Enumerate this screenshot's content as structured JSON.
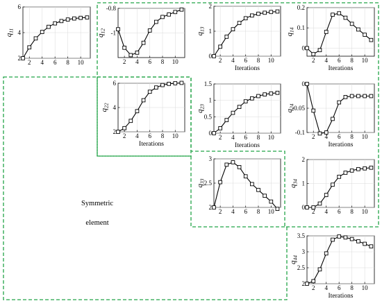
{
  "annotation": {
    "symmetric_line1": "Symmetric",
    "symmetric_line2": "element"
  },
  "colors": {
    "region_outline": "#22a447",
    "series": "#000000",
    "grid": "#d9d9d9"
  },
  "chart_data": [
    {
      "id": "q11",
      "type": "line",
      "ylabel_main": "q",
      "ylabel_sub": "11",
      "xlabel": "",
      "x": [
        1,
        2,
        3,
        4,
        5,
        6,
        7,
        8,
        9,
        10,
        11
      ],
      "values": [
        2.0,
        2.85,
        3.55,
        4.05,
        4.45,
        4.72,
        4.9,
        5.02,
        5.1,
        5.15,
        5.18
      ],
      "xlim": [
        1,
        11.5
      ],
      "ylim": [
        2,
        6
      ],
      "xticks": [
        2,
        4,
        6,
        8,
        10
      ],
      "yticks": [
        2,
        4,
        6
      ],
      "grid": true
    },
    {
      "id": "q12",
      "type": "line",
      "ylabel_main": "q",
      "ylabel_sub": "12",
      "xlabel": "",
      "x": [
        1,
        2,
        3,
        4,
        5,
        6,
        7,
        8,
        9,
        10,
        11
      ],
      "values": [
        -0.97,
        -1.12,
        -1.18,
        -1.16,
        -1.08,
        -0.98,
        -0.91,
        -0.87,
        -0.85,
        -0.83,
        -0.81
      ],
      "xlim": [
        1,
        11.5
      ],
      "ylim": [
        -1.2,
        -0.8
      ],
      "xticks": [
        2,
        4,
        6,
        8,
        10
      ],
      "yticks": [
        -1,
        -0.8
      ],
      "grid": true
    },
    {
      "id": "q13",
      "type": "line",
      "ylabel_main": "q",
      "ylabel_sub": "13",
      "xlabel": "Iterations",
      "x": [
        1,
        2,
        3,
        4,
        5,
        6,
        7,
        8,
        9,
        10,
        11
      ],
      "values": [
        0.0,
        0.38,
        0.78,
        1.08,
        1.33,
        1.52,
        1.63,
        1.7,
        1.74,
        1.77,
        1.79
      ],
      "xlim": [
        1,
        11.5
      ],
      "ylim": [
        0,
        2
      ],
      "xticks": [
        2,
        4,
        6,
        8,
        10
      ],
      "yticks": [
        0,
        1,
        2
      ],
      "grid": true
    },
    {
      "id": "q14",
      "type": "line",
      "ylabel_main": "q",
      "ylabel_sub": "14",
      "xlabel": "Iterations",
      "x": [
        1,
        2,
        3,
        4,
        5,
        6,
        7,
        8,
        9,
        10,
        11
      ],
      "values": [
        0.0,
        -0.03,
        -0.01,
        0.08,
        0.165,
        0.172,
        0.15,
        0.12,
        0.092,
        0.066,
        0.04
      ],
      "xlim": [
        1,
        11.5
      ],
      "ylim": [
        -0.04,
        0.2
      ],
      "xticks": [
        2,
        4,
        6,
        8,
        10
      ],
      "yticks": [
        0,
        0.1,
        0.2
      ],
      "grid": true
    },
    {
      "id": "q22",
      "type": "line",
      "ylabel_main": "q",
      "ylabel_sub": "22",
      "xlabel": "Iterations",
      "x": [
        1,
        2,
        3,
        4,
        5,
        6,
        7,
        8,
        9,
        10,
        11
      ],
      "values": [
        2.0,
        2.3,
        2.9,
        3.7,
        4.6,
        5.3,
        5.65,
        5.85,
        5.95,
        6.0,
        6.03
      ],
      "xlim": [
        1,
        11.5
      ],
      "ylim": [
        2,
        6
      ],
      "xticks": [
        2,
        4,
        6,
        8,
        10
      ],
      "yticks": [
        2,
        4,
        6
      ],
      "grid": true
    },
    {
      "id": "q23",
      "type": "line",
      "ylabel_main": "q",
      "ylabel_sub": "23",
      "xlabel": "Iterations",
      "x": [
        1,
        2,
        3,
        4,
        5,
        6,
        7,
        8,
        9,
        10,
        11
      ],
      "values": [
        0.0,
        0.15,
        0.4,
        0.62,
        0.8,
        0.97,
        1.06,
        1.13,
        1.18,
        1.21,
        1.23
      ],
      "xlim": [
        1,
        11.5
      ],
      "ylim": [
        0,
        1.5
      ],
      "xticks": [
        2,
        4,
        6,
        8,
        10
      ],
      "yticks": [
        0,
        0.5,
        1,
        1.5
      ],
      "grid": true
    },
    {
      "id": "q24",
      "type": "line",
      "ylabel_main": "q",
      "ylabel_sub": "24",
      "xlabel": "Iterations",
      "x": [
        1,
        2,
        3,
        4,
        5,
        6,
        7,
        8,
        9,
        10,
        11
      ],
      "values": [
        0.0,
        -0.055,
        -0.102,
        -0.1,
        -0.072,
        -0.038,
        -0.027,
        -0.025,
        -0.025,
        -0.025,
        -0.025
      ],
      "xlim": [
        1,
        11.5
      ],
      "ylim": [
        -0.1,
        0
      ],
      "xticks": [
        2,
        4,
        6,
        8,
        10
      ],
      "yticks": [
        -0.1,
        -0.05,
        0
      ],
      "grid": true
    },
    {
      "id": "q33",
      "type": "line",
      "ylabel_main": "q",
      "ylabel_sub": "33",
      "xlabel": "",
      "x": [
        1,
        2,
        3,
        4,
        5,
        6,
        7,
        8,
        9,
        10,
        11
      ],
      "values": [
        2.0,
        2.52,
        2.88,
        2.93,
        2.83,
        2.64,
        2.48,
        2.36,
        2.24,
        2.12,
        1.97
      ],
      "xlim": [
        1,
        11.5
      ],
      "ylim": [
        2,
        3
      ],
      "xticks": [
        2,
        4,
        6,
        8,
        10
      ],
      "yticks": [
        2,
        2.5,
        3
      ],
      "grid": true
    },
    {
      "id": "q34",
      "type": "line",
      "ylabel_main": "q",
      "ylabel_sub": "34",
      "xlabel": "",
      "x": [
        1,
        2,
        3,
        4,
        5,
        6,
        7,
        8,
        9,
        10,
        11
      ],
      "values": [
        0.0,
        0.0,
        0.16,
        0.52,
        0.95,
        1.28,
        1.45,
        1.54,
        1.6,
        1.63,
        1.66
      ],
      "xlim": [
        1,
        11.5
      ],
      "ylim": [
        0,
        2
      ],
      "xticks": [
        2,
        4,
        6,
        8,
        10
      ],
      "yticks": [
        0,
        1,
        2
      ],
      "grid": true
    },
    {
      "id": "q44",
      "type": "line",
      "ylabel_main": "q",
      "ylabel_sub": "44",
      "xlabel": "Iterations",
      "x": [
        1,
        2,
        3,
        4,
        5,
        6,
        7,
        8,
        9,
        10,
        11
      ],
      "values": [
        2.0,
        2.08,
        2.45,
        2.95,
        3.38,
        3.48,
        3.45,
        3.4,
        3.33,
        3.25,
        3.17
      ],
      "xlim": [
        1,
        11.5
      ],
      "ylim": [
        2,
        3.5
      ],
      "xticks": [
        2,
        4,
        6,
        8,
        10
      ],
      "yticks": [
        2,
        2.5,
        3,
        3.5
      ],
      "grid": true
    }
  ]
}
